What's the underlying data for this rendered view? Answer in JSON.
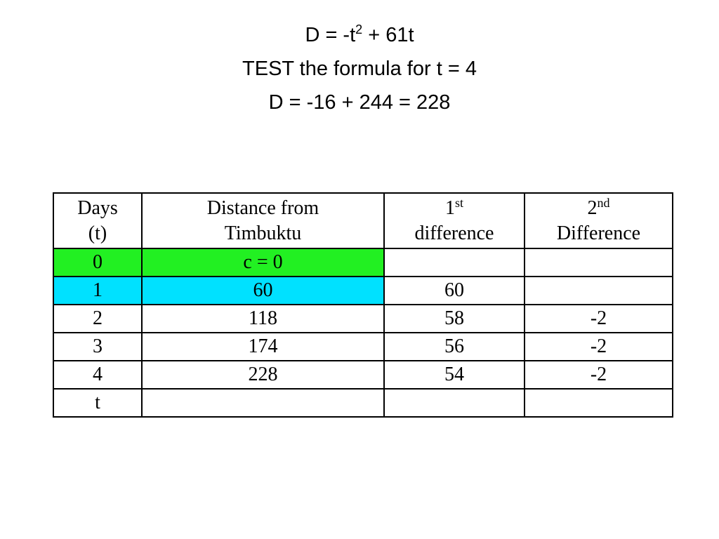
{
  "header": {
    "line1": [
      "D = -t",
      "2",
      " + 61t"
    ],
    "line2": "TEST the formula for t = 4",
    "line3": "D = -16 + 244 = 228"
  },
  "table": {
    "columns": [
      [
        "Days",
        "(t)"
      ],
      [
        "Distance from",
        "Timbuktu"
      ],
      [
        "1",
        "st",
        "difference"
      ],
      [
        "2",
        "nd",
        "Difference"
      ]
    ],
    "rows": [
      [
        "0",
        "c = 0",
        null,
        null
      ],
      [
        "1",
        "60",
        "60",
        null
      ],
      [
        "2",
        "118",
        "58",
        "-2"
      ],
      [
        "3",
        "174",
        "56",
        "-2"
      ],
      [
        "4",
        "228",
        "54",
        "-2"
      ],
      [
        "t",
        null,
        null,
        null
      ]
    ]
  }
}
